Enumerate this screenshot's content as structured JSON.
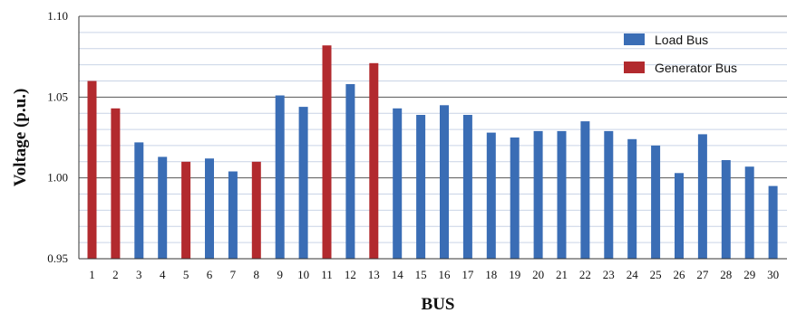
{
  "chart_data": {
    "type": "bar",
    "xlabel": "BUS",
    "ylabel": "Voltage  (p.u.)",
    "ylim": [
      0.95,
      1.1
    ],
    "yticks": [
      "0.95",
      "1.00",
      "1.05",
      "1.10"
    ],
    "grid": true,
    "legend_position": "top-right",
    "categories": [
      "1",
      "2",
      "3",
      "4",
      "5",
      "6",
      "7",
      "8",
      "9",
      "10",
      "11",
      "12",
      "13",
      "14",
      "15",
      "16",
      "17",
      "18",
      "19",
      "20",
      "21",
      "22",
      "23",
      "24",
      "25",
      "26",
      "27",
      "28",
      "29",
      "30"
    ],
    "values": [
      1.06,
      1.043,
      1.022,
      1.013,
      1.01,
      1.012,
      1.004,
      1.01,
      1.051,
      1.044,
      1.082,
      1.058,
      1.071,
      1.043,
      1.039,
      1.045,
      1.039,
      1.028,
      1.025,
      1.029,
      1.029,
      1.035,
      1.029,
      1.024,
      1.02,
      1.003,
      1.027,
      1.011,
      1.007,
      0.995
    ],
    "bus_types": [
      "generator",
      "generator",
      "load",
      "load",
      "generator",
      "load",
      "load",
      "generator",
      "load",
      "load",
      "generator",
      "load",
      "generator",
      "load",
      "load",
      "load",
      "load",
      "load",
      "load",
      "load",
      "load",
      "load",
      "load",
      "load",
      "load",
      "load",
      "load",
      "load",
      "load",
      "load"
    ],
    "legend": [
      {
        "key": "load",
        "label": "Load Bus",
        "color": "#3A6DB5"
      },
      {
        "key": "generator",
        "label": "Generator Bus",
        "color": "#B22A2E"
      }
    ]
  }
}
